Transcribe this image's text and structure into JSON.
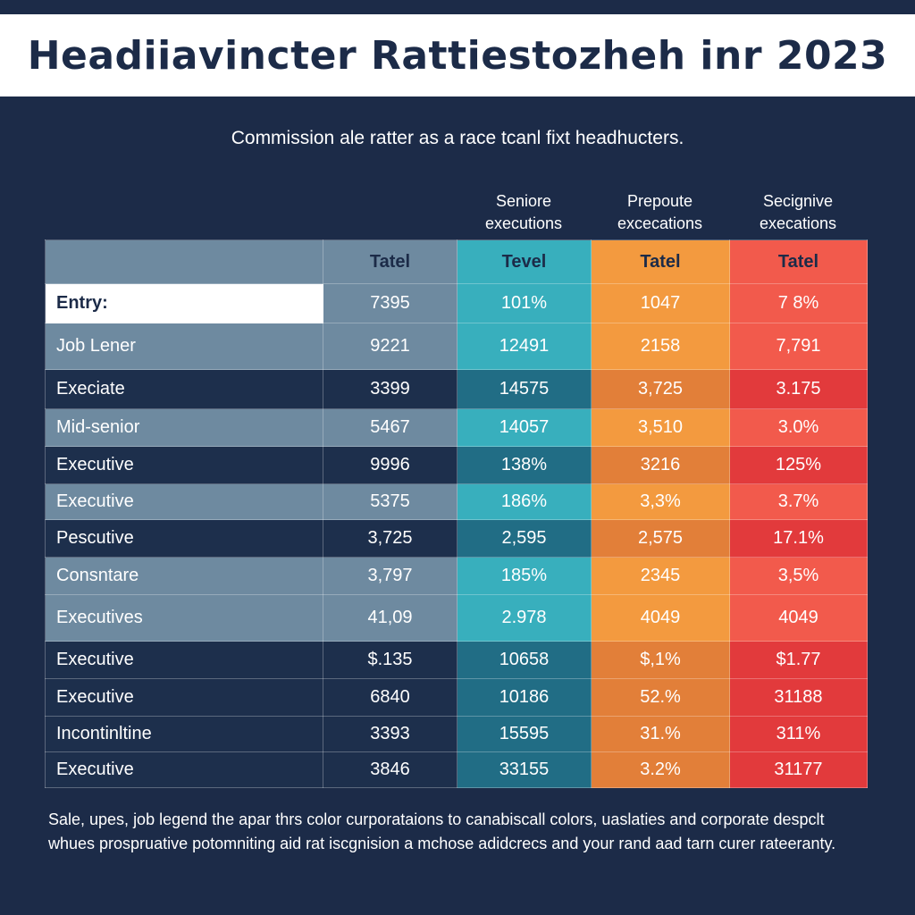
{
  "title": "Headiiavincter Rattiestozheh inr 2023",
  "subtitle": "Commission ale ratter as a race tcanl fixt headhucters.",
  "chart_data": {
    "type": "table",
    "title": "Headiiavincter Rattiestozheh inr 2023",
    "subtitle": "Commission ale ratter as a race tcanl fixt headhucters.",
    "column_groups": [
      "",
      "",
      "Seniore executions",
      "Prepoute excecations",
      "Secignive execations"
    ],
    "columns": [
      "",
      "Tatel",
      "Tevel",
      "Tatel",
      "Tatel"
    ],
    "rows": [
      {
        "label": "Entry:",
        "values": [
          "7395",
          "101%",
          "1047",
          "7 8%"
        ],
        "style": "entry"
      },
      {
        "label": "Job Lener",
        "values": [
          "9221",
          "12491",
          "2158",
          "7,791"
        ],
        "style": "light"
      },
      {
        "label": "Execiate",
        "values": [
          "3399",
          "14575",
          "3,725",
          "3.175"
        ],
        "style": "dark"
      },
      {
        "label": "Mid-senior",
        "values": [
          "5467",
          "14057",
          "3,510",
          "3.0%"
        ],
        "style": "light"
      },
      {
        "label": "Executive",
        "values": [
          "9996",
          "138%",
          "3216",
          "125%"
        ],
        "style": "dark"
      },
      {
        "label": "Executive",
        "values": [
          "5375",
          "186%",
          "3,3%",
          "3.7%"
        ],
        "style": "light"
      },
      {
        "label": "Pescutive",
        "values": [
          "3,725",
          "2,595",
          "2,575",
          "17.1%"
        ],
        "style": "dark"
      },
      {
        "label": "Consntare",
        "values": [
          "3,797",
          "185%",
          "2345",
          "3,5%"
        ],
        "style": "light"
      },
      {
        "label": "Executives",
        "values": [
          "41,09",
          "2.978",
          "4049",
          "4049"
        ],
        "style": "light"
      },
      {
        "label": "Executive",
        "values": [
          "$.135",
          "10658",
          "$,1%",
          "$1.77"
        ],
        "style": "dark"
      },
      {
        "label": "Executive",
        "values": [
          "6840",
          "10186",
          "52.%",
          "31188"
        ],
        "style": "dark"
      },
      {
        "label": "Incontinltine",
        "values": [
          "3393",
          "15595",
          "31.%",
          "311%"
        ],
        "style": "dark"
      },
      {
        "label": "Executive",
        "values": [
          "3846",
          "33155",
          "3.2%",
          "31177"
        ],
        "style": "dark"
      }
    ],
    "colors": {
      "gray": "#6e8aa0",
      "teal": "#38afbd",
      "orange": "#f39a3f",
      "red": "#f25a4c",
      "navy": "#1c2b48"
    }
  },
  "footnote": "Sale, upes, job legend the apar thrs color curporataions to canabiscall colors, uaslaties and corporate despclt whues prospruative potomniting aid rat iscgnision a mchose adidcrecs and your rand aad tarn curer rateeranty."
}
